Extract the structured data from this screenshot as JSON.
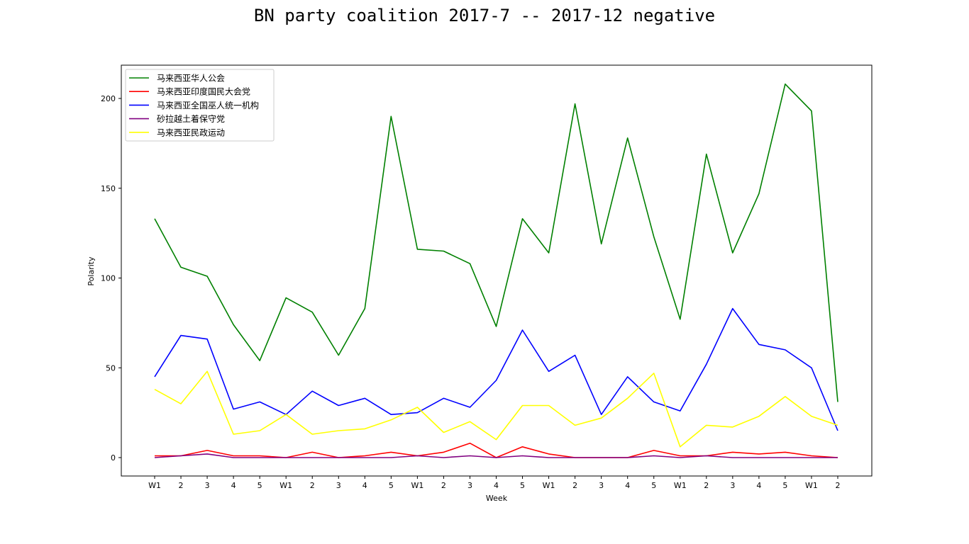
{
  "chart_data": {
    "type": "line",
    "title": "BN party coalition 2017-7 -- 2017-12 negative",
    "xlabel": "Week",
    "ylabel": "Polarity",
    "ylim": [
      -10,
      220
    ],
    "yticks": [
      0,
      50,
      100,
      150,
      200
    ],
    "grid": false,
    "legend_position": "top-left",
    "categories": [
      "W1",
      "2",
      "3",
      "4",
      "5",
      "W1",
      "2",
      "3",
      "4",
      "5",
      "W1",
      "2",
      "3",
      "4",
      "5",
      "W1",
      "2",
      "3",
      "4",
      "5",
      "W1",
      "2",
      "3",
      "4",
      "5",
      "W1",
      "2"
    ],
    "series": [
      {
        "name": "马来西亚华人公会",
        "color": "#008000",
        "values": [
          133,
          106,
          101,
          74,
          54,
          89,
          81,
          57,
          83,
          190,
          116,
          115,
          108,
          73,
          133,
          114,
          197,
          119,
          178,
          123,
          77,
          169,
          114,
          147,
          208,
          193,
          31
        ]
      },
      {
        "name": "马来西亚印度国民大会党",
        "color": "#ff0000",
        "values": [
          1,
          1,
          4,
          1,
          1,
          0,
          3,
          0,
          1,
          3,
          1,
          3,
          8,
          0,
          6,
          2,
          0,
          0,
          0,
          4,
          1,
          1,
          3,
          2,
          3,
          1,
          0
        ]
      },
      {
        "name": "马来西亚全国巫人统一机构",
        "color": "#0000ff",
        "values": [
          45,
          68,
          66,
          27,
          31,
          24,
          37,
          29,
          33,
          24,
          25,
          33,
          28,
          43,
          71,
          48,
          57,
          24,
          45,
          31,
          26,
          52,
          83,
          63,
          60,
          50,
          15
        ]
      },
      {
        "name": "砂拉越土着保守党",
        "color": "#800080",
        "values": [
          0,
          1,
          2,
          0,
          0,
          0,
          0,
          0,
          0,
          0,
          1,
          0,
          1,
          0,
          1,
          0,
          0,
          0,
          0,
          1,
          0,
          1,
          0,
          0,
          0,
          0,
          0
        ]
      },
      {
        "name": "马来西亚民政运动",
        "color": "#ffff00",
        "values": [
          38,
          30,
          48,
          13,
          15,
          24,
          13,
          15,
          16,
          21,
          28,
          14,
          20,
          10,
          29,
          29,
          18,
          22,
          33,
          47,
          6,
          18,
          17,
          23,
          34,
          23,
          18
        ]
      }
    ]
  }
}
